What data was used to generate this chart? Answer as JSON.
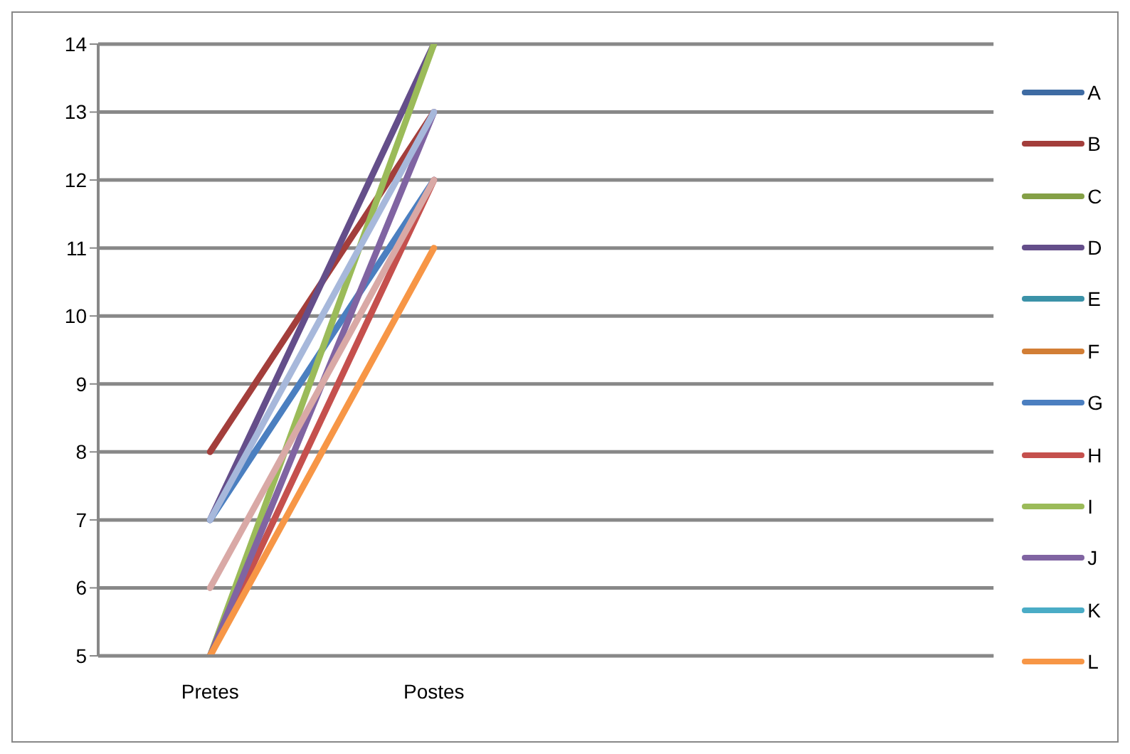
{
  "chart_data": {
    "type": "line",
    "categories": [
      "Pretes",
      "Postes",
      null,
      null
    ],
    "series": [
      {
        "name": "A",
        "color": "#3e6ba3",
        "values": [
          null,
          null,
          null,
          null
        ]
      },
      {
        "name": "B",
        "color": "#a33e3b",
        "values": [
          8,
          13,
          null,
          null
        ]
      },
      {
        "name": "C",
        "color": "#84a046",
        "values": [
          null,
          null,
          null,
          null
        ]
      },
      {
        "name": "D",
        "color": "#644e8a",
        "values": [
          7,
          14,
          null,
          null
        ]
      },
      {
        "name": "E",
        "color": "#3b92a8",
        "values": [
          null,
          null,
          null,
          null
        ]
      },
      {
        "name": "F",
        "color": "#d27e35",
        "values": [
          null,
          null,
          null,
          null
        ]
      },
      {
        "name": "G",
        "color": "#4b7fc0",
        "values": [
          7,
          12,
          null,
          null
        ]
      },
      {
        "name": "H",
        "color": "#c5504d",
        "values": [
          5,
          12,
          null,
          null
        ]
      },
      {
        "name": "I",
        "color": "#9bbb59",
        "values": [
          5,
          14,
          null,
          null
        ]
      },
      {
        "name": "J",
        "color": "#8064a2",
        "values": [
          5,
          13,
          null,
          null
        ]
      },
      {
        "name": "K",
        "color": "#4aacc6",
        "values": [
          null,
          null,
          null,
          null
        ]
      },
      {
        "name": "L",
        "color": "#f79646",
        "values": [
          5,
          11,
          null,
          null
        ]
      },
      {
        "color": "#a7b8db",
        "values": [
          7,
          13,
          null,
          null
        ]
      },
      {
        "color": "#d9a9a6",
        "values": [
          6,
          12,
          null,
          null
        ]
      }
    ],
    "ylim": [
      5,
      14
    ],
    "yticks": [
      5,
      6,
      7,
      8,
      9,
      10,
      11,
      12,
      13,
      14
    ],
    "grid": "y",
    "legend": "right",
    "marker": "none",
    "line_style": "solid"
  }
}
